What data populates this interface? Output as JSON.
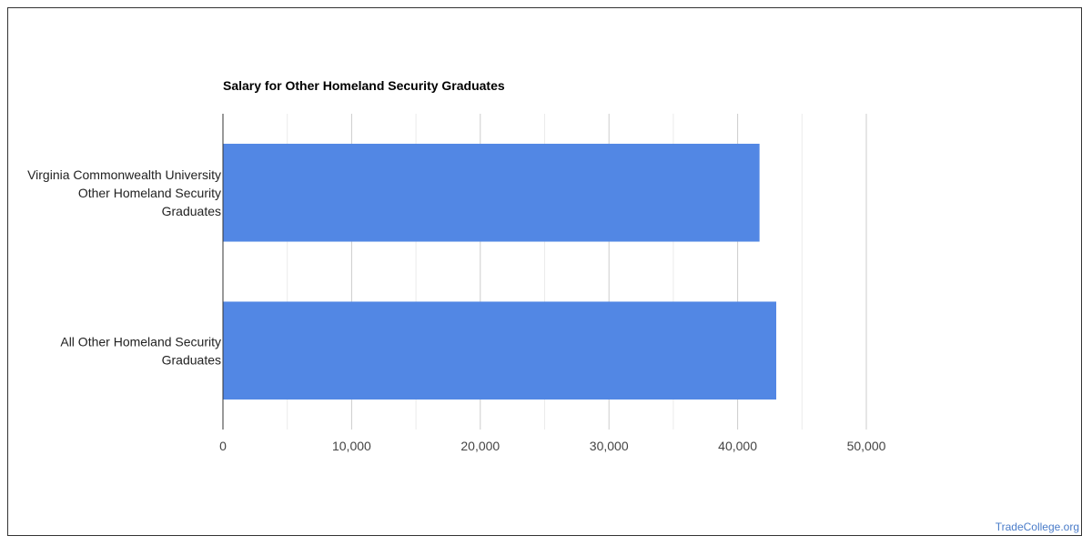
{
  "chart_data": {
    "type": "bar",
    "orientation": "horizontal",
    "title": "Salary for Other Homeland Security Graduates",
    "categories": [
      [
        "Virginia Commonwealth University",
        "Other Homeland Security",
        "Graduates"
      ],
      [
        "All Other Homeland Security",
        "Graduates"
      ]
    ],
    "values": [
      41700,
      43000
    ],
    "xlim": [
      0,
      50000
    ],
    "major_ticks": [
      0,
      10000,
      20000,
      30000,
      40000,
      50000
    ],
    "tick_labels": [
      "0",
      "10,000",
      "20,000",
      "30,000",
      "40,000",
      "50,000"
    ],
    "minor_gridlines": [
      5000,
      15000,
      25000,
      35000,
      45000
    ],
    "grid": true,
    "bar_color": "#5287e4"
  },
  "watermark": "TradeCollege.org"
}
